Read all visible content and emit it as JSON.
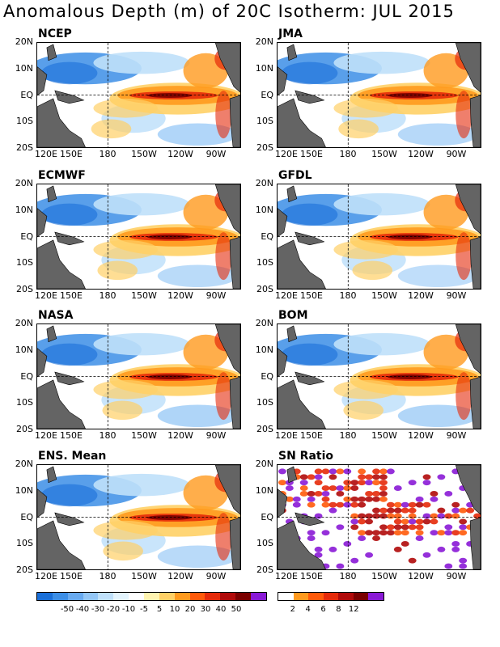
{
  "title": "Anomalous Depth (m) of 20C Isotherm: JUL 2015",
  "axes": {
    "lat_labels": [
      "20N",
      "10N",
      "EQ",
      "10S",
      "20S"
    ],
    "lon_labels": [
      "120E",
      "150E",
      "180",
      "150W",
      "120W",
      "90W"
    ]
  },
  "panels": [
    {
      "id": "ncep",
      "label": "NCEP"
    },
    {
      "id": "jma",
      "label": "JMA"
    },
    {
      "id": "ecmwf",
      "label": "ECMWF"
    },
    {
      "id": "gfdl",
      "label": "GFDL"
    },
    {
      "id": "nasa",
      "label": "NASA"
    },
    {
      "id": "bom",
      "label": "BOM"
    },
    {
      "id": "ens",
      "label": "ENS. Mean"
    },
    {
      "id": "sn",
      "label": "SN Ratio"
    }
  ],
  "legend_depth": {
    "colors": [
      "#1a6fd8",
      "#3c8ee6",
      "#68aaf0",
      "#93c6f6",
      "#bfe0fa",
      "#e3f4fd",
      "#ffffff",
      "#fff4b0",
      "#ffd066",
      "#ff9a1e",
      "#ff5a0a",
      "#e52a0a",
      "#b00a0a",
      "#7a0000",
      "#8a1ad6"
    ],
    "ticks": [
      "-50",
      "-40",
      "-30",
      "-20",
      "-10",
      "-5",
      "5",
      "10",
      "20",
      "30",
      "40",
      "50"
    ]
  },
  "legend_sn": {
    "colors": [
      "#ffffff",
      "#ff9a1e",
      "#ff5a0a",
      "#e52a0a",
      "#b00a0a",
      "#7a0000",
      "#8a1ad6"
    ],
    "ticks": [
      "2",
      "4",
      "6",
      "8",
      "12"
    ]
  },
  "colors": {
    "land": "#646464",
    "deep_blue": "#3c8ee6",
    "light_blue": "#bfe0fa",
    "yellow": "#ffd066",
    "orange": "#ff9a1e",
    "red": "#e52a0a",
    "dark_red": "#7a0000",
    "purple": "#8a1ad6"
  }
}
